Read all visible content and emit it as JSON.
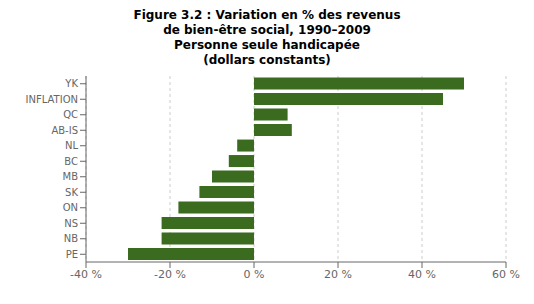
{
  "chart_data": {
    "type": "bar",
    "orientation": "horizontal",
    "title": "Figure 3.2 : Variation en % des revenus\nde bien-être social, 1990–2009\nPersonne seule handicapée\n(dollars constants)",
    "categories": [
      "YK",
      "INFLATION",
      "QC",
      "AB-IS",
      "NL",
      "BC",
      "MB",
      "SK",
      "ON",
      "NS",
      "NB",
      "PE"
    ],
    "values": [
      50,
      45,
      8,
      9,
      -4,
      -6,
      -10,
      -13,
      -18,
      -22,
      -22,
      -30
    ],
    "color": "#3a6b1e",
    "xlim": [
      -40,
      60
    ],
    "xticks": [
      {
        "value": -40,
        "label": "-40 %"
      },
      {
        "value": -20,
        "label": "-20 %"
      },
      {
        "value": 0,
        "label": "0 %"
      },
      {
        "value": 20,
        "label": "20 %"
      },
      {
        "value": 40,
        "label": "40 %"
      },
      {
        "value": 60,
        "label": "60 %"
      }
    ],
    "grid": true
  }
}
